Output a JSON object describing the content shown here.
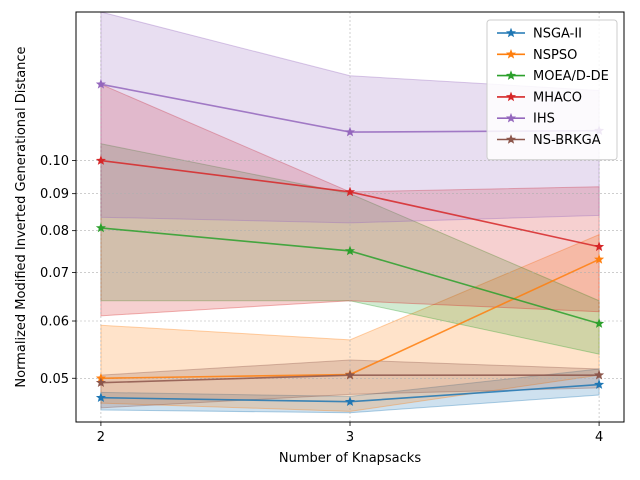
{
  "chart_data": {
    "type": "line",
    "title": "",
    "xlabel": "Number of Knapsacks",
    "ylabel": "Normalized Modified Inverted Generational Distance",
    "x": [
      2,
      3,
      4
    ],
    "x_ticks": [
      "2",
      "3",
      "4"
    ],
    "y_ticks": [
      0.05,
      0.06,
      0.07,
      0.08,
      0.09,
      0.1
    ],
    "y_tick_labels": [
      "0.05",
      "0.06",
      "0.07",
      "0.08",
      "0.09",
      "0.10"
    ],
    "y_scale": "log",
    "xlim": [
      1.9,
      4.1
    ],
    "ylim": [
      0.0435,
      0.1605
    ],
    "grid": true,
    "legend_position": "upper-right",
    "series": [
      {
        "name": "NSGA-II",
        "color": "#1f77b4",
        "marker": "star",
        "values": [
          0.047,
          0.0464,
          0.049
        ],
        "lower": [
          0.0452,
          0.0448,
          0.0474
        ],
        "upper": [
          0.0478,
          0.0472,
          0.0515
        ]
      },
      {
        "name": "NSPSO",
        "color": "#ff7f0e",
        "marker": "star",
        "values": [
          0.05,
          0.0506,
          0.073
        ],
        "lower": [
          0.0462,
          0.045,
          0.0505
        ],
        "upper": [
          0.0592,
          0.0565,
          0.079
        ]
      },
      {
        "name": "MOEA/D-DE",
        "color": "#2ca02c",
        "marker": "star",
        "values": [
          0.0807,
          0.075,
          0.0595
        ],
        "lower": [
          0.064,
          0.064,
          0.054
        ],
        "upper": [
          0.1055,
          0.09,
          0.064
        ]
      },
      {
        "name": "MHACO",
        "color": "#d62728",
        "marker": "star",
        "values": [
          0.1,
          0.0905,
          0.076
        ],
        "lower": [
          0.061,
          0.064,
          0.0618
        ],
        "upper": [
          0.1275,
          0.0905,
          0.092
        ]
      },
      {
        "name": "IHS",
        "color": "#9467bd",
        "marker": "star",
        "values": [
          0.1275,
          0.1095,
          0.11
        ],
        "lower": [
          0.0835,
          0.082,
          0.084
        ],
        "upper": [
          0.1605,
          0.131,
          0.125
        ]
      },
      {
        "name": "NS-BRKGA",
        "color": "#8c564b",
        "marker": "star",
        "values": [
          0.0493,
          0.0505,
          0.0505
        ],
        "lower": [
          0.0455,
          0.0475,
          0.0485
        ],
        "upper": [
          0.0505,
          0.053,
          0.0515
        ]
      }
    ]
  }
}
